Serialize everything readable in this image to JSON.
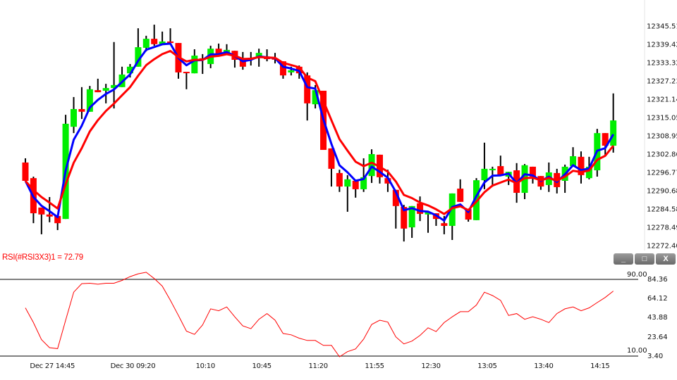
{
  "chart_data": [
    {
      "type": "candlestick",
      "price_axis": {
        "ticks": [
          "12345.51",
          "12339.42",
          "12333.32",
          "12327.23",
          "12321.14",
          "12315.05",
          "12308.95",
          "12302.86",
          "12296.77",
          "12290.68",
          "12284.58",
          "12278.49",
          "12272.40"
        ],
        "range": [
          12272.4,
          12345.51
        ]
      },
      "x_tick_labels": [
        {
          "label": "Dec 27 14:45",
          "index": 3
        },
        {
          "label": "Dec 30 09:20",
          "index": 13
        },
        {
          "label": "10:10",
          "index": 22
        },
        {
          "label": "10:45",
          "index": 29
        },
        {
          "label": "11:20",
          "index": 36
        },
        {
          "label": "11:55",
          "index": 43
        },
        {
          "label": "12:30",
          "index": 50
        },
        {
          "label": "13:05",
          "index": 57
        },
        {
          "label": "13:40",
          "index": 64
        },
        {
          "label": "14:15",
          "index": 71
        }
      ],
      "ohlc": [
        [
          12300.3,
          12301.7,
          12294.2,
          12294.2
        ],
        [
          12295.1,
          12295.6,
          12280.1,
          12283.4
        ],
        [
          12285.3,
          12285.3,
          12276.4,
          12283.0
        ],
        [
          12283.0,
          12288.8,
          12280.4,
          12282.3
        ],
        [
          12282.5,
          12282.5,
          12277.8,
          12280.1
        ],
        [
          12281.5,
          12316.2,
          12281.5,
          12313.2
        ],
        [
          12312.2,
          12322.1,
          12310.1,
          12318.1
        ],
        [
          12318.1,
          12325.4,
          12314.8,
          12317.2
        ],
        [
          12317.2,
          12325.8,
          12317.2,
          12324.7
        ],
        [
          12324.4,
          12328.2,
          12323.7,
          12323.7
        ],
        [
          12324.2,
          12326.5,
          12320.0,
          12325.1
        ],
        [
          12325.1,
          12340.4,
          12318.3,
          12326.1
        ],
        [
          12325.4,
          12332.2,
          12325.4,
          12329.6
        ],
        [
          12330.0,
          12333.1,
          12328.6,
          12332.2
        ],
        [
          12332.2,
          12345.0,
          12332.2,
          12338.7
        ],
        [
          12338.5,
          12342.5,
          12337.3,
          12341.5
        ],
        [
          12341.5,
          12346.2,
          12339.2,
          12339.7
        ],
        [
          12339.7,
          12343.9,
          12339.7,
          12340.6
        ],
        [
          12340.6,
          12345.0,
          12340.1,
          12340.1
        ],
        [
          12340.1,
          12340.1,
          12328.2,
          12330.3
        ],
        [
          12330.5,
          12330.5,
          12324.7,
          12330.3
        ],
        [
          12330.0,
          12338.0,
          12330.0,
          12335.9
        ],
        [
          12335.0,
          12336.4,
          12329.8,
          12334.5
        ],
        [
          12333.1,
          12339.2,
          12331.7,
          12338.2
        ],
        [
          12338.2,
          12339.9,
          12336.4,
          12336.4
        ],
        [
          12336.1,
          12339.7,
          12336.1,
          12337.8
        ],
        [
          12337.5,
          12337.5,
          12331.9,
          12334.5
        ],
        [
          12334.5,
          12337.1,
          12331.2,
          12332.2
        ],
        [
          12335.2,
          12337.1,
          12332.6,
          12335.0
        ],
        [
          12335.2,
          12338.2,
          12332.2,
          12336.8
        ],
        [
          12335.2,
          12338.0,
          12334.0,
          12335.0
        ],
        [
          12335.0,
          12336.8,
          12333.3,
          12334.8
        ],
        [
          12334.0,
          12334.0,
          12328.2,
          12329.3
        ],
        [
          12330.3,
          12332.2,
          12329.3,
          12331.0
        ],
        [
          12332.2,
          12332.6,
          12328.2,
          12330.0
        ],
        [
          12329.3,
          12330.3,
          12314.3,
          12320.0
        ],
        [
          12319.7,
          12326.1,
          12318.3,
          12324.4
        ],
        [
          12324.2,
          12324.2,
          12304.5,
          12304.5
        ],
        [
          12305.0,
          12305.0,
          12292.3,
          12298.2
        ],
        [
          12296.8,
          12297.9,
          12290.5,
          12292.3
        ],
        [
          12292.3,
          12296.1,
          12283.9,
          12294.7
        ],
        [
          12294.2,
          12294.2,
          12288.6,
          12291.4
        ],
        [
          12291.4,
          12301.7,
          12290.5,
          12295.4
        ],
        [
          12295.8,
          12304.7,
          12293.5,
          12303.1
        ],
        [
          12302.9,
          12302.9,
          12293.3,
          12295.4
        ],
        [
          12295.1,
          12297.9,
          12290.5,
          12293.3
        ],
        [
          12291.2,
          12291.2,
          12278.3,
          12285.8
        ],
        [
          12285.5,
          12286.2,
          12274.0,
          12278.3
        ],
        [
          12278.7,
          12285.8,
          12275.2,
          12285.8
        ],
        [
          12286.7,
          12289.0,
          12280.8,
          12283.2
        ],
        [
          12283.0,
          12283.7,
          12276.9,
          12283.7
        ],
        [
          12283.4,
          12283.4,
          12279.2,
          12281.5
        ],
        [
          12280.1,
          12282.5,
          12276.4,
          12279.2
        ],
        [
          12279.2,
          12290.0,
          12274.5,
          12290.0
        ],
        [
          12291.6,
          12294.7,
          12287.2,
          12287.2
        ],
        [
          12284.8,
          12284.8,
          12280.6,
          12281.3
        ],
        [
          12281.1,
          12295.1,
          12281.1,
          12294.4
        ],
        [
          12294.4,
          12306.9,
          12291.4,
          12298.2
        ],
        [
          12297.9,
          12298.9,
          12292.3,
          12298.2
        ],
        [
          12299.1,
          12302.6,
          12296.1,
          12296.1
        ],
        [
          12295.6,
          12297.2,
          12292.8,
          12297.2
        ],
        [
          12297.7,
          12300.1,
          12286.9,
          12290.2
        ],
        [
          12290.2,
          12299.8,
          12288.1,
          12299.4
        ],
        [
          12298.9,
          12298.9,
          12293.3,
          12295.6
        ],
        [
          12295.8,
          12295.8,
          12291.2,
          12292.3
        ],
        [
          12292.8,
          12300.3,
          12290.5,
          12297.0
        ],
        [
          12296.8,
          12298.2,
          12290.0,
          12292.1
        ],
        [
          12294.2,
          12299.6,
          12290.2,
          12298.9
        ],
        [
          12299.1,
          12305.4,
          12299.1,
          12302.4
        ],
        [
          12302.2,
          12304.0,
          12293.3,
          12296.1
        ],
        [
          12295.1,
          12302.2,
          12294.7,
          12298.9
        ],
        [
          12297.7,
          12311.5,
          12295.6,
          12310.1
        ],
        [
          12310.1,
          12310.1,
          12302.6,
          12305.9
        ],
        [
          12305.9,
          12323.3,
          12303.6,
          12314.3
        ]
      ],
      "overlays": [
        {
          "kind": "moving-average",
          "period": 3,
          "color": "#0000ff"
        },
        {
          "kind": "moving-average",
          "period": 6,
          "color": "#ff0000"
        }
      ],
      "colors": {
        "up": "#00ee00",
        "down": "#ff0000",
        "wick": "#000000"
      },
      "grid": false
    },
    {
      "type": "line",
      "title": "RSI(#RSI3X3)1 = 72.79",
      "y_ticks": [
        "84.36",
        "64.12",
        "43.88",
        "23.64",
        "3.40"
      ],
      "levels": [
        {
          "label": "90.00"
        },
        {
          "label": "10.00"
        }
      ],
      "color": "#ff0000",
      "values": [
        55,
        39.5,
        21.5,
        13,
        12,
        42,
        71.6,
        80.6,
        81,
        80,
        81,
        81,
        84,
        88,
        91,
        92.6,
        86,
        78,
        63,
        47,
        30.4,
        27,
        37,
        54,
        52,
        56,
        45.6,
        36,
        33,
        43,
        49,
        42,
        28,
        26.6,
        23,
        20.6,
        20.6,
        15.4,
        15.4,
        3.4,
        8.8,
        11.7,
        22,
        37.6,
        42,
        40,
        24.4,
        17,
        20,
        26,
        34,
        30,
        39.5,
        45.6,
        51,
        51,
        58,
        71.6,
        68,
        63,
        47,
        49,
        43,
        45.6,
        43,
        39.5,
        49,
        54,
        56,
        52,
        55,
        60.6,
        66,
        72.79
      ]
    }
  ],
  "window_buttons": {
    "minimize": "_",
    "maximize": "□",
    "close": "X"
  }
}
